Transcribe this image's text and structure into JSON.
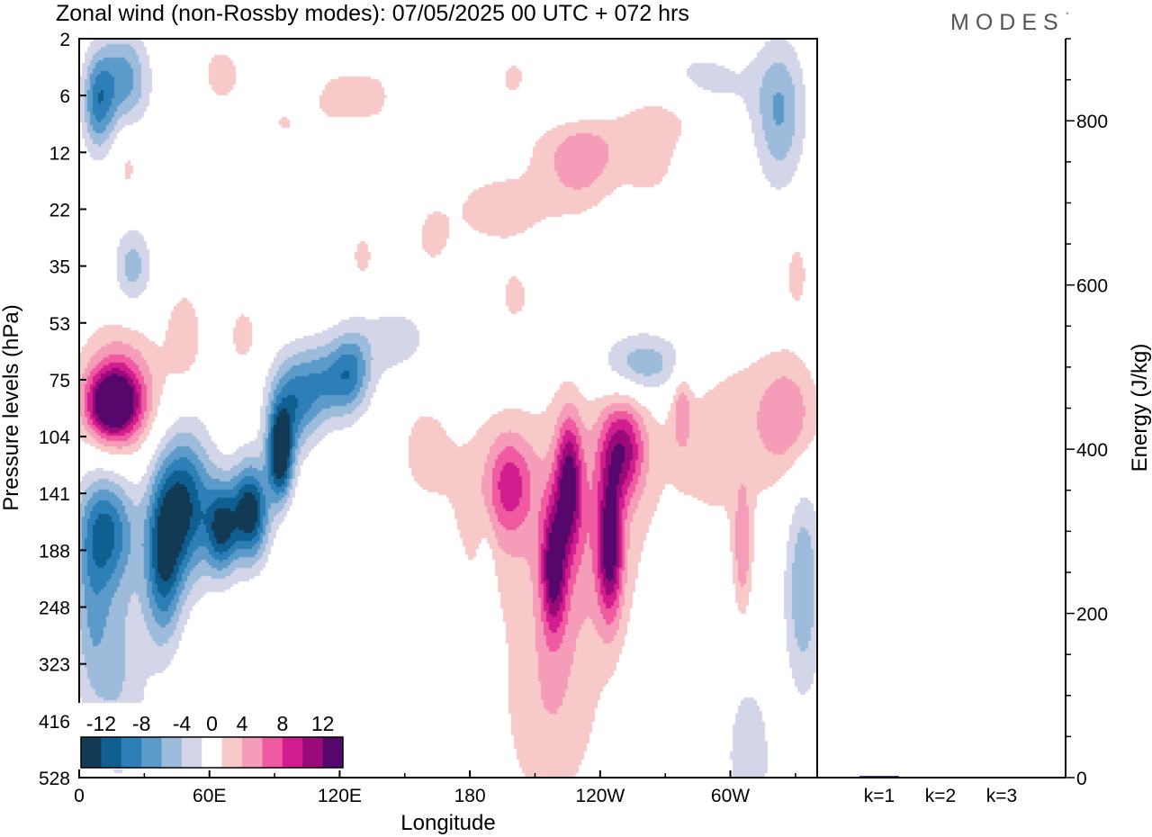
{
  "brand": "MODES",
  "brand_mark": "°",
  "colors": {
    "neg": [
      "#123a55",
      "#0f5f91",
      "#2d7fb8",
      "#5c9bc9",
      "#9dbbdb",
      "#d3d6e8"
    ],
    "pos": [
      "#f8c9c9",
      "#f59cb8",
      "#ef5aa0",
      "#d11d8f",
      "#9a0a78",
      "#56076b"
    ],
    "zero": "#ffffff",
    "energy_bar": "#1a1a66"
  },
  "chart_data": [
    {
      "type": "heatmap",
      "title": "Zonal wind (non-Rossby modes):  07/05/2025  00 UTC  + 072 hrs",
      "xlabel": "Longitude",
      "ylabel": "Pressure levels (hPa)",
      "x_ticks": [
        "0",
        "60E",
        "120E",
        "180",
        "120W",
        "60W"
      ],
      "x_tick_values": [
        0,
        60,
        120,
        180,
        240,
        300
      ],
      "xlim": [
        0,
        340
      ],
      "y_ticks": [
        "2",
        "6",
        "12",
        "22",
        "35",
        "53",
        "75",
        "104",
        "141",
        "188",
        "248",
        "323",
        "416",
        "528"
      ],
      "colorbar": {
        "labels": [
          "-12",
          "-8",
          "-4",
          "0",
          "4",
          "8",
          "12"
        ],
        "levels": [
          -14,
          -12,
          -10,
          -8,
          -6,
          -4,
          -2,
          2,
          4,
          6,
          8,
          10,
          12,
          14
        ],
        "placement": "lower-left"
      },
      "anomalies": [
        {
          "lon": 92,
          "lev": 7.3,
          "value": -15,
          "slon": 4,
          "slev": 0.55
        },
        {
          "lon": 78,
          "lev": 8.3,
          "value": -14,
          "slon": 6,
          "slev": 0.6
        },
        {
          "lon": 65,
          "lev": 8.6,
          "value": -11,
          "slon": 5,
          "slev": 0.55
        },
        {
          "lon": 98,
          "lev": 6.4,
          "value": -8,
          "slon": 8,
          "slev": 0.6
        },
        {
          "lon": 115,
          "lev": 6.0,
          "value": -7,
          "slon": 10,
          "slev": 0.5
        },
        {
          "lon": 125,
          "lev": 5.8,
          "value": -5,
          "slon": 6,
          "slev": 0.5
        },
        {
          "lon": 48,
          "lev": 8.2,
          "value": -12,
          "slon": 9,
          "slev": 0.9
        },
        {
          "lon": 38,
          "lev": 9.2,
          "value": -10,
          "slon": 6,
          "slev": 1.0
        },
        {
          "lon": 12,
          "lev": 8.6,
          "value": -9,
          "slon": 9,
          "slev": 0.7
        },
        {
          "lon": 5,
          "lev": 10.0,
          "value": -5,
          "slon": 6,
          "slev": 1.2
        },
        {
          "lon": 18,
          "lev": 11.0,
          "value": -4,
          "slon": 9,
          "slev": 1.6
        },
        {
          "lon": 20,
          "lev": 0.7,
          "value": -7,
          "slon": 8,
          "slev": 0.6
        },
        {
          "lon": 8,
          "lev": 1.1,
          "value": -8,
          "slon": 5,
          "slev": 0.6
        },
        {
          "lon": 24,
          "lev": 4.0,
          "value": -5,
          "slon": 6,
          "slev": 0.5
        },
        {
          "lon": 145,
          "lev": 5.3,
          "value": -3,
          "slon": 14,
          "slev": 0.5
        },
        {
          "lon": 260,
          "lev": 5.7,
          "value": -6,
          "slon": 15,
          "slev": 0.4
        },
        {
          "lon": 285,
          "lev": 0.8,
          "value": -3,
          "slon": 20,
          "slev": 0.5
        },
        {
          "lon": 322,
          "lev": 1.3,
          "value": -6,
          "slon": 8,
          "slev": 0.9
        },
        {
          "lon": 333,
          "lev": 9.6,
          "value": -6,
          "slon": 6,
          "slev": 1.3
        },
        {
          "lon": 308,
          "lev": 12.6,
          "value": -4,
          "slon": 7,
          "slev": 0.9
        },
        {
          "lon": 228,
          "lev": 1.1,
          "value": -3,
          "slon": 18,
          "slev": 0.4
        },
        {
          "lon": 85,
          "lev": 2.1,
          "value": -2.5,
          "slon": 20,
          "slev": 0.4
        },
        {
          "lon": 187,
          "lev": 9.6,
          "value": -2.5,
          "slon": 3,
          "slev": 0.9
        },
        {
          "lon": 15,
          "lev": 6.4,
          "value": 13,
          "slon": 8,
          "slev": 0.4
        },
        {
          "lon": 18,
          "lev": 6.2,
          "value": 7,
          "slon": 13,
          "slev": 0.8
        },
        {
          "lon": 48,
          "lev": 5.2,
          "value": 3.5,
          "slon": 6,
          "slev": 0.6
        },
        {
          "lon": 225,
          "lev": 7.8,
          "value": 10,
          "slon": 4,
          "slev": 0.8
        },
        {
          "lon": 244,
          "lev": 8.9,
          "value": 11,
          "slon": 4,
          "slev": 0.9
        },
        {
          "lon": 250,
          "lev": 7.2,
          "value": 9,
          "slon": 7,
          "slev": 0.6
        },
        {
          "lon": 218,
          "lev": 9.3,
          "value": 10,
          "slon": 4,
          "slev": 0.8
        },
        {
          "lon": 230,
          "lev": 8.5,
          "value": 5,
          "slon": 20,
          "slev": 1.6
        },
        {
          "lon": 216,
          "lev": 11.8,
          "value": 3.5,
          "slon": 16,
          "slev": 1.4
        },
        {
          "lon": 198,
          "lev": 7.8,
          "value": 6,
          "slon": 7,
          "slev": 0.6
        },
        {
          "lon": 188,
          "lev": 8.2,
          "value": 3,
          "slon": 14,
          "slev": 1.2
        },
        {
          "lon": 158,
          "lev": 7.2,
          "value": 2.5,
          "slon": 10,
          "slev": 0.8
        },
        {
          "lon": 295,
          "lev": 7.0,
          "value": 3,
          "slon": 22,
          "slev": 1.3
        },
        {
          "lon": 326,
          "lev": 6.6,
          "value": 5,
          "slon": 10,
          "slev": 0.7
        },
        {
          "lon": 277,
          "lev": 6.5,
          "value": 4,
          "slon": 3,
          "slev": 0.5
        },
        {
          "lon": 305,
          "lev": 9.0,
          "value": 5,
          "slon": 3,
          "slev": 0.8
        },
        {
          "lon": 230,
          "lev": 2.2,
          "value": 4,
          "slon": 12,
          "slev": 0.6
        },
        {
          "lon": 235,
          "lev": 1.6,
          "value": 2.5,
          "slon": 25,
          "slev": 0.6
        },
        {
          "lon": 270,
          "lev": 1.3,
          "value": 3,
          "slon": 15,
          "slev": 0.4
        },
        {
          "lon": 193,
          "lev": 3.0,
          "value": 3,
          "slon": 18,
          "slev": 0.5
        },
        {
          "lon": 200,
          "lev": 4.5,
          "value": 2.5,
          "slon": 6,
          "slev": 0.4
        },
        {
          "lon": 162,
          "lev": 3.5,
          "value": 2.5,
          "slon": 6,
          "slev": 0.4
        },
        {
          "lon": 93,
          "lev": 1.7,
          "value": 3,
          "slon": 12,
          "slev": 0.5
        },
        {
          "lon": 118,
          "lev": 1.0,
          "value": 2.5,
          "slon": 8,
          "slev": 0.4
        },
        {
          "lon": 135,
          "lev": 1.0,
          "value": 2.5,
          "slon": 8,
          "slev": 0.4
        },
        {
          "lon": 65,
          "lev": 0.6,
          "value": 3,
          "slon": 7,
          "slev": 0.4
        },
        {
          "lon": 200,
          "lev": 0.7,
          "value": 2.5,
          "slon": 8,
          "slev": 0.4
        },
        {
          "lon": 22,
          "lev": 2.2,
          "value": 2.5,
          "slon": 4,
          "slev": 0.5
        },
        {
          "lon": 262,
          "lev": 2.2,
          "value": 2.5,
          "slon": 8,
          "slev": 0.4
        },
        {
          "lon": 330,
          "lev": 4.1,
          "value": 2.5,
          "slon": 5,
          "slev": 0.6
        },
        {
          "lon": 75,
          "lev": 5.2,
          "value": 3,
          "slon": 5,
          "slev": 0.4
        },
        {
          "lon": 130,
          "lev": 3.8,
          "value": 2.5,
          "slon": 5,
          "slev": 0.4
        }
      ]
    },
    {
      "type": "bar",
      "ylabel": "Energy (J/kg)",
      "categories": [
        "k=1",
        "k=2",
        "k=3"
      ],
      "values": [
        2,
        1,
        1
      ],
      "ylim": [
        0,
        900
      ],
      "y_ticks": [
        0,
        200,
        400,
        600,
        800
      ]
    }
  ]
}
